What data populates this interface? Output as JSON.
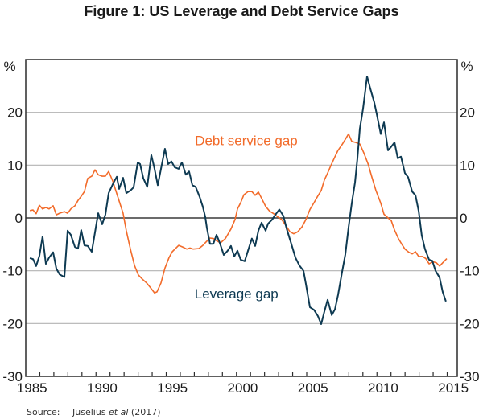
{
  "chart_data": {
    "type": "line",
    "title": "Figure 1: US Leverage and Debt Service Gaps",
    "xlabel": "",
    "ylabel": "%",
    "ylabel_right": "%",
    "xlim": [
      1985,
      2015.7
    ],
    "ylim": [
      -30,
      30
    ],
    "x_ticks": [
      1985,
      1990,
      1995,
      2000,
      2005,
      2010,
      2015
    ],
    "y_ticks": [
      20,
      10,
      0,
      -10,
      -20,
      -30
    ],
    "grid": true,
    "source_label": "Source:",
    "source_text_pre": "Juselius ",
    "source_text_italic": "et al",
    "source_text_post": " (2017)",
    "series": [
      {
        "name": "Debt service gap",
        "color": "#F26B2A",
        "points": [
          [
            1985.29,
            1.4
          ],
          [
            1985.52,
            1.5
          ],
          [
            1985.74,
            0.8
          ],
          [
            1985.97,
            2.4
          ],
          [
            1986.2,
            1.7
          ],
          [
            1986.43,
            2.0
          ],
          [
            1986.66,
            1.7
          ],
          [
            1986.95,
            2.3
          ],
          [
            1987.18,
            0.6
          ],
          [
            1987.41,
            0.9
          ],
          [
            1987.75,
            1.2
          ],
          [
            1987.98,
            0.9
          ],
          [
            1988.21,
            1.7
          ],
          [
            1988.5,
            2.3
          ],
          [
            1988.72,
            3.3
          ],
          [
            1988.95,
            4.1
          ],
          [
            1989.18,
            5.0
          ],
          [
            1989.41,
            7.5
          ],
          [
            1989.7,
            7.9
          ],
          [
            1989.93,
            9.1
          ],
          [
            1990.16,
            8.2
          ],
          [
            1990.44,
            7.9
          ],
          [
            1990.67,
            7.9
          ],
          [
            1990.9,
            8.8
          ],
          [
            1991.19,
            7.0
          ],
          [
            1991.59,
            3.7
          ],
          [
            1991.93,
            0.9
          ],
          [
            1992.16,
            -2.4
          ],
          [
            1992.45,
            -5.9
          ],
          [
            1992.74,
            -9.0
          ],
          [
            1993.02,
            -10.8
          ],
          [
            1993.31,
            -11.6
          ],
          [
            1993.6,
            -12.3
          ],
          [
            1993.88,
            -13.2
          ],
          [
            1994.17,
            -14.2
          ],
          [
            1994.34,
            -14.0
          ],
          [
            1994.63,
            -12.3
          ],
          [
            1994.91,
            -9.5
          ],
          [
            1995.2,
            -7.5
          ],
          [
            1995.43,
            -6.4
          ],
          [
            1995.89,
            -5.2
          ],
          [
            1996.17,
            -5.5
          ],
          [
            1996.46,
            -5.9
          ],
          [
            1996.69,
            -5.7
          ],
          [
            1996.92,
            -5.9
          ],
          [
            1997.32,
            -5.8
          ],
          [
            1997.61,
            -5.2
          ],
          [
            1997.89,
            -4.4
          ],
          [
            1998.12,
            -3.8
          ],
          [
            1998.35,
            -3.9
          ],
          [
            1998.64,
            -4.4
          ],
          [
            1998.87,
            -4.7
          ],
          [
            1999.21,
            -3.9
          ],
          [
            1999.61,
            -2.1
          ],
          [
            1999.9,
            -0.3
          ],
          [
            2000.07,
            1.7
          ],
          [
            2000.3,
            2.9
          ],
          [
            2000.53,
            4.4
          ],
          [
            2000.82,
            5.0
          ],
          [
            2001.1,
            5.0
          ],
          [
            2001.33,
            4.3
          ],
          [
            2001.56,
            4.9
          ],
          [
            2001.79,
            3.7
          ],
          [
            2002.08,
            2.2
          ],
          [
            2002.36,
            1.3
          ],
          [
            2002.65,
            0.8
          ],
          [
            2002.94,
            0.2
          ],
          [
            2003.22,
            -0.3
          ],
          [
            2003.51,
            -1.4
          ],
          [
            2003.8,
            -2.6
          ],
          [
            2004.08,
            -3.0
          ],
          [
            2004.37,
            -2.6
          ],
          [
            2004.66,
            -1.7
          ],
          [
            2004.94,
            -0.3
          ],
          [
            2005.23,
            1.6
          ],
          [
            2005.52,
            2.9
          ],
          [
            2005.8,
            4.2
          ],
          [
            2006.03,
            5.2
          ],
          [
            2006.26,
            7.2
          ],
          [
            2006.49,
            8.5
          ],
          [
            2006.78,
            10.3
          ],
          [
            2007.01,
            11.6
          ],
          [
            2007.23,
            12.8
          ],
          [
            2007.52,
            13.9
          ],
          [
            2007.75,
            14.9
          ],
          [
            2007.98,
            15.9
          ],
          [
            2008.21,
            14.5
          ],
          [
            2008.5,
            14.3
          ],
          [
            2008.78,
            14.0
          ],
          [
            2009.07,
            12.3
          ],
          [
            2009.36,
            10.3
          ],
          [
            2009.64,
            7.7
          ],
          [
            2009.93,
            5.2
          ],
          [
            2010.27,
            2.8
          ],
          [
            2010.5,
            0.7
          ],
          [
            2010.79,
            0.0
          ],
          [
            2011.02,
            -0.5
          ],
          [
            2011.25,
            -2.3
          ],
          [
            2011.53,
            -3.9
          ],
          [
            2011.82,
            -5.2
          ],
          [
            2011.99,
            -5.9
          ],
          [
            2012.28,
            -6.5
          ],
          [
            2012.51,
            -6.8
          ],
          [
            2012.74,
            -6.4
          ],
          [
            2012.97,
            -7.3
          ],
          [
            2013.25,
            -7.3
          ],
          [
            2013.48,
            -7.7
          ],
          [
            2013.71,
            -8.7
          ],
          [
            2014.0,
            -8.3
          ],
          [
            2014.23,
            -8.5
          ],
          [
            2014.46,
            -9.1
          ],
          [
            2014.68,
            -8.5
          ],
          [
            2014.97,
            -7.7
          ]
        ]
      },
      {
        "name": "Leverage gap",
        "color": "#0E3A52",
        "points": [
          [
            1985.29,
            -7.6
          ],
          [
            1985.52,
            -7.8
          ],
          [
            1985.74,
            -9.1
          ],
          [
            1985.97,
            -7.2
          ],
          [
            1986.2,
            -3.5
          ],
          [
            1986.43,
            -8.7
          ],
          [
            1986.66,
            -7.5
          ],
          [
            1986.95,
            -6.5
          ],
          [
            1987.18,
            -9.6
          ],
          [
            1987.41,
            -10.7
          ],
          [
            1987.75,
            -11.2
          ],
          [
            1987.98,
            -2.4
          ],
          [
            1988.21,
            -3.2
          ],
          [
            1988.5,
            -5.5
          ],
          [
            1988.72,
            -5.8
          ],
          [
            1988.95,
            -2.3
          ],
          [
            1989.18,
            -5.2
          ],
          [
            1989.41,
            -5.3
          ],
          [
            1989.7,
            -6.4
          ],
          [
            1990.16,
            0.9
          ],
          [
            1990.44,
            -1.2
          ],
          [
            1990.67,
            0.6
          ],
          [
            1990.9,
            4.7
          ],
          [
            1991.25,
            6.7
          ],
          [
            1991.48,
            7.8
          ],
          [
            1991.65,
            5.5
          ],
          [
            1991.93,
            7.6
          ],
          [
            1992.16,
            4.7
          ],
          [
            1992.45,
            5.2
          ],
          [
            1992.68,
            5.8
          ],
          [
            1992.97,
            10.5
          ],
          [
            1993.14,
            10.2
          ],
          [
            1993.37,
            7.5
          ],
          [
            1993.65,
            5.9
          ],
          [
            1993.94,
            11.9
          ],
          [
            1994.17,
            9.3
          ],
          [
            1994.4,
            6.2
          ],
          [
            1994.63,
            9.3
          ],
          [
            1994.91,
            13.1
          ],
          [
            1995.14,
            10.2
          ],
          [
            1995.37,
            10.7
          ],
          [
            1995.6,
            9.6
          ],
          [
            1995.89,
            9.3
          ],
          [
            1996.12,
            10.5
          ],
          [
            1996.4,
            8.2
          ],
          [
            1996.63,
            8.8
          ],
          [
            1996.86,
            6.2
          ],
          [
            1997.09,
            5.9
          ],
          [
            1997.38,
            4.0
          ],
          [
            1997.61,
            2.1
          ],
          [
            1997.78,
            0.2
          ],
          [
            1997.89,
            -1.8
          ],
          [
            1998.12,
            -4.9
          ],
          [
            1998.35,
            -4.9
          ],
          [
            1998.58,
            -3.2
          ],
          [
            1998.81,
            -4.7
          ],
          [
            1999.1,
            -7.0
          ],
          [
            1999.38,
            -6.2
          ],
          [
            1999.61,
            -5.3
          ],
          [
            1999.84,
            -7.3
          ],
          [
            2000.07,
            -6.2
          ],
          [
            2000.3,
            -7.9
          ],
          [
            2000.59,
            -8.2
          ],
          [
            2000.82,
            -6.2
          ],
          [
            2001.1,
            -3.9
          ],
          [
            2001.33,
            -5.3
          ],
          [
            2001.56,
            -2.4
          ],
          [
            2001.79,
            -0.9
          ],
          [
            2002.08,
            -2.4
          ],
          [
            2002.25,
            -1.1
          ],
          [
            2002.54,
            -0.3
          ],
          [
            2002.83,
            0.8
          ],
          [
            2003.05,
            1.6
          ],
          [
            2003.34,
            0.4
          ],
          [
            2003.57,
            -2.0
          ],
          [
            2003.85,
            -4.4
          ],
          [
            2004.2,
            -7.5
          ],
          [
            2004.48,
            -9.0
          ],
          [
            2004.77,
            -10.0
          ],
          [
            2004.94,
            -12.5
          ],
          [
            2005.23,
            -16.9
          ],
          [
            2005.52,
            -17.4
          ],
          [
            2005.8,
            -18.6
          ],
          [
            2006.03,
            -20.1
          ],
          [
            2006.26,
            -17.7
          ],
          [
            2006.49,
            -15.5
          ],
          [
            2006.78,
            -18.4
          ],
          [
            2007.01,
            -17.3
          ],
          [
            2007.23,
            -14.6
          ],
          [
            2007.52,
            -10.2
          ],
          [
            2007.75,
            -6.9
          ],
          [
            2007.98,
            -1.8
          ],
          [
            2008.21,
            2.8
          ],
          [
            2008.44,
            6.7
          ],
          [
            2008.61,
            11.3
          ],
          [
            2008.78,
            16.9
          ],
          [
            2009.01,
            20.7
          ],
          [
            2009.3,
            26.8
          ],
          [
            2009.53,
            24.5
          ],
          [
            2009.81,
            21.9
          ],
          [
            2009.99,
            19.6
          ],
          [
            2010.27,
            15.9
          ],
          [
            2010.5,
            18.1
          ],
          [
            2010.79,
            12.8
          ],
          [
            2011.02,
            13.5
          ],
          [
            2011.25,
            14.3
          ],
          [
            2011.48,
            11.3
          ],
          [
            2011.71,
            11.6
          ],
          [
            2011.99,
            8.5
          ],
          [
            2012.22,
            7.7
          ],
          [
            2012.51,
            5.0
          ],
          [
            2012.74,
            4.3
          ],
          [
            2012.97,
            1.3
          ],
          [
            2013.19,
            -3.3
          ],
          [
            2013.42,
            -5.9
          ],
          [
            2013.71,
            -7.9
          ],
          [
            2013.94,
            -8.1
          ],
          [
            2014.17,
            -10.0
          ],
          [
            2014.46,
            -11.3
          ],
          [
            2014.68,
            -14.0
          ],
          [
            2014.91,
            -15.8
          ]
        ]
      }
    ],
    "annotations": [
      {
        "text": "Debt service gap",
        "series": "Debt service gap",
        "x": 2000.7,
        "y": 13.8
      },
      {
        "text": "Leverage gap",
        "series": "Leverage gap",
        "x": 2000.0,
        "y": -15.2
      }
    ]
  }
}
